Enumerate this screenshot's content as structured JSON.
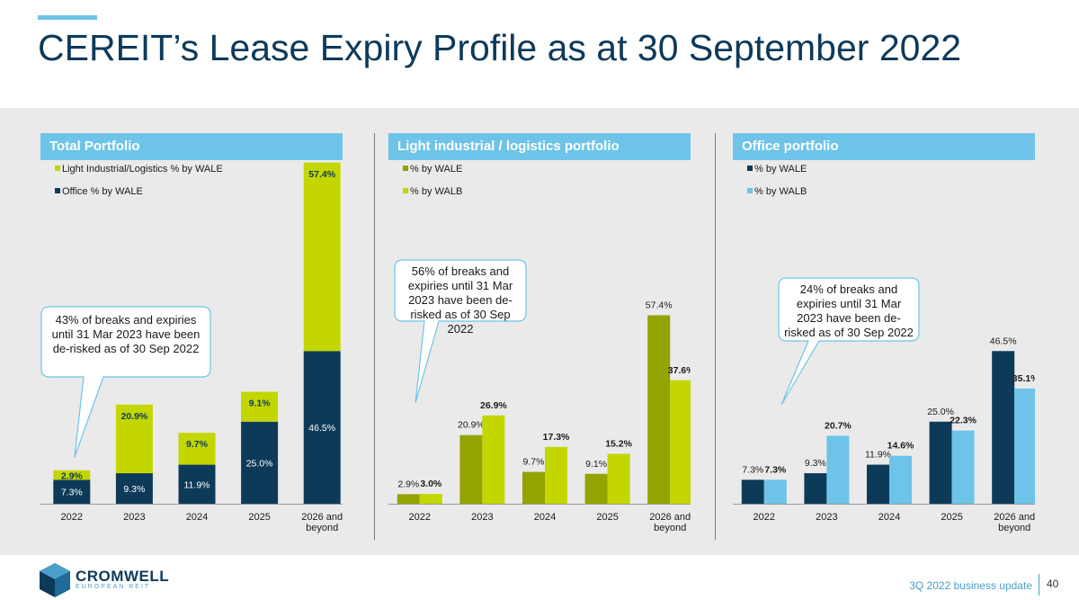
{
  "title": "CEREIT’s Lease Expiry Profile as at 30 September 2022",
  "footer": {
    "logo_name": "CROMWELL",
    "logo_sub": "EUROPEAN REIT",
    "subtitle": "3Q 2022 business update",
    "page": "40"
  },
  "colors": {
    "navy": "#0e3a5a",
    "lime": "#c4d600",
    "olive": "#93a300",
    "sky": "#6ec4e8"
  },
  "chart_data": [
    {
      "type": "bar",
      "stacked": true,
      "title": "Total Portfolio",
      "categories": [
        "2022",
        "2023",
        "2024",
        "2025",
        "2026 and beyond"
      ],
      "series": [
        {
          "name": "Office % by WALE",
          "values": [
            7.3,
            9.3,
            11.9,
            25.0,
            46.5
          ],
          "labels": [
            "7.3%",
            "9.3%",
            "11.9%",
            "25.0%",
            "46.5%"
          ],
          "color": "#0e3a5a"
        },
        {
          "name": "Light Industrial/Logistics % by WALE",
          "values": [
            2.9,
            20.9,
            9.7,
            9.1,
            57.4
          ],
          "labels": [
            "2.9%",
            "20.9%",
            "9.7%",
            "9.1%",
            "57.4%"
          ],
          "color": "#c4d600"
        }
      ],
      "legend_order": [
        1,
        0
      ],
      "legend": "top-left",
      "callout": "43% of breaks and expiries until 31 Mar 2023 have been de-risked as of 30 Sep 2022"
    },
    {
      "type": "bar",
      "stacked": false,
      "title": "Light industrial / logistics portfolio",
      "categories": [
        "2022",
        "2023",
        "2024",
        "2025",
        "2026 and beyond"
      ],
      "series": [
        {
          "name": "% by WALE",
          "values": [
            2.9,
            20.9,
            9.7,
            9.1,
            57.4
          ],
          "labels": [
            "2.9%",
            "20.9%",
            "9.7%",
            "9.1%",
            "57.4%"
          ],
          "color": "#93a300"
        },
        {
          "name": "% by WALB",
          "values": [
            3.0,
            26.9,
            17.3,
            15.2,
            37.6
          ],
          "labels": [
            "3.0%",
            "26.9%",
            "17.3%",
            "15.2%",
            "37.6%"
          ],
          "color": "#c4d600"
        }
      ],
      "legend_order": [
        0,
        1
      ],
      "legend": "top-left",
      "callout": "56% of breaks and expiries until 31 Mar 2023 have been de-risked as of 30 Sep 2022"
    },
    {
      "type": "bar",
      "stacked": false,
      "title": "Office portfolio",
      "categories": [
        "2022",
        "2023",
        "2024",
        "2025",
        "2026 and beyond"
      ],
      "series": [
        {
          "name": "% by WALE",
          "values": [
            7.3,
            9.3,
            11.9,
            25.0,
            46.5
          ],
          "labels": [
            "7.3%",
            "9.3%",
            "11.9%",
            "25.0%",
            "46.5%"
          ],
          "color": "#0e3a5a"
        },
        {
          "name": "% by WALB",
          "values": [
            7.3,
            20.7,
            14.6,
            22.3,
            35.1
          ],
          "labels": [
            "7.3%",
            "20.7%",
            "14.6%",
            "22.3%",
            "35.1%"
          ],
          "color": "#6ec4e8"
        }
      ],
      "legend_order": [
        0,
        1
      ],
      "legend": "top-left",
      "callout": "24% of breaks and expiries until 31 Mar 2023 have been de-risked as of 30 Sep 2022"
    }
  ]
}
